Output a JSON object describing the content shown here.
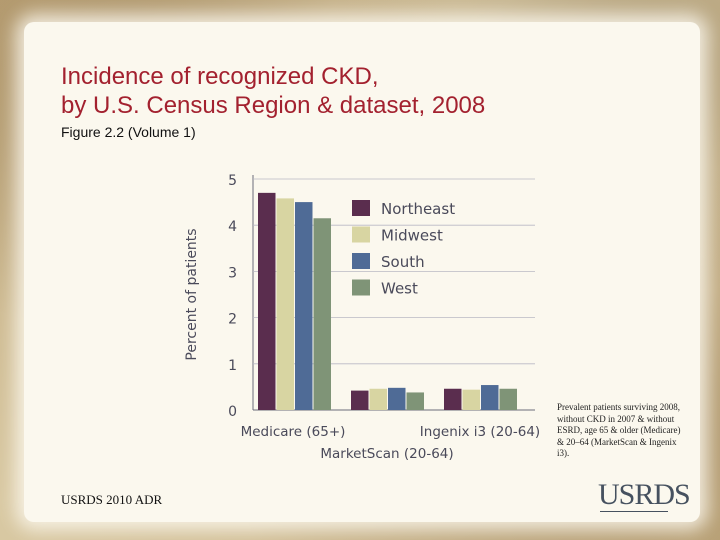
{
  "slide": {
    "title_line1": "Incidence of recognized CKD,",
    "title_line2": "by U.S. Census Region & dataset, 2008",
    "subtitle": "Figure 2.2 (Volume 1)",
    "footnote": "Prevalent patients surviving 2008, without CKD in 2007 & without ESRD, age 65 & older (Medicare) & 20–64 (MarketScan & Ingenix i3).",
    "footer": "USRDS 2010 ADR",
    "logo": "USRDS"
  },
  "chart_data": {
    "type": "bar",
    "ylabel": "Percent of patients",
    "ylim": [
      0,
      5
    ],
    "yticks": [
      0,
      1,
      2,
      3,
      4,
      5
    ],
    "categories": [
      "Medicare (65+)",
      "MarketScan (20-64)",
      "Ingenix i3 (20-64)"
    ],
    "series": [
      {
        "name": "Northeast",
        "color": "#5a2d4e",
        "values": [
          4.7,
          0.42,
          0.46
        ]
      },
      {
        "name": "Midwest",
        "color": "#d8d5a2",
        "values": [
          4.58,
          0.46,
          0.44
        ]
      },
      {
        "name": "South",
        "color": "#4f6b96",
        "values": [
          4.5,
          0.48,
          0.54
        ]
      },
      {
        "name": "West",
        "color": "#7f9477",
        "values": [
          4.15,
          0.38,
          0.46
        ]
      }
    ],
    "grid": true,
    "legend_position": "top-right"
  }
}
